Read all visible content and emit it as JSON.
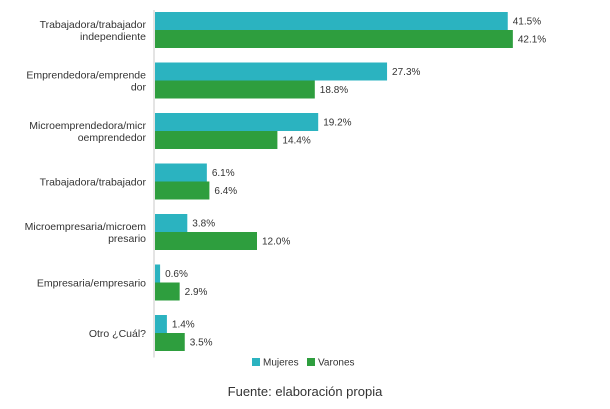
{
  "chart_data": {
    "type": "bar",
    "orientation": "horizontal",
    "categories": [
      [
        "Trabajadora/trabajador",
        "independiente"
      ],
      [
        "Emprendedora/emprende",
        "dor"
      ],
      [
        "Microemprendedora/micr",
        "oemprendedor"
      ],
      [
        "Trabajadora/trabajador"
      ],
      [
        "Microempresaria/microem",
        "presario"
      ],
      [
        "Empresaria/empresario"
      ],
      [
        "Otro ¿Cuál?"
      ]
    ],
    "series": [
      {
        "name": "Mujeres",
        "color": "#2bb3c0",
        "values": [
          41.5,
          27.3,
          19.2,
          6.1,
          3.8,
          0.6,
          1.4
        ],
        "labels": [
          "41.5%",
          "27.3%",
          "19.2%",
          "6.1%",
          "3.8%",
          "0.6%",
          "1.4%"
        ]
      },
      {
        "name": "Varones",
        "color": "#2e9e3e",
        "values": [
          42.1,
          18.8,
          14.4,
          6.4,
          12.0,
          2.9,
          3.5
        ],
        "labels": [
          "42.1%",
          "18.8%",
          "14.4%",
          "6.4%",
          "12.0%",
          "2.9%",
          "3.5%"
        ]
      }
    ],
    "legend_position": "bottom",
    "grid": false
  },
  "source_note": "Fuente: elaboración propia"
}
